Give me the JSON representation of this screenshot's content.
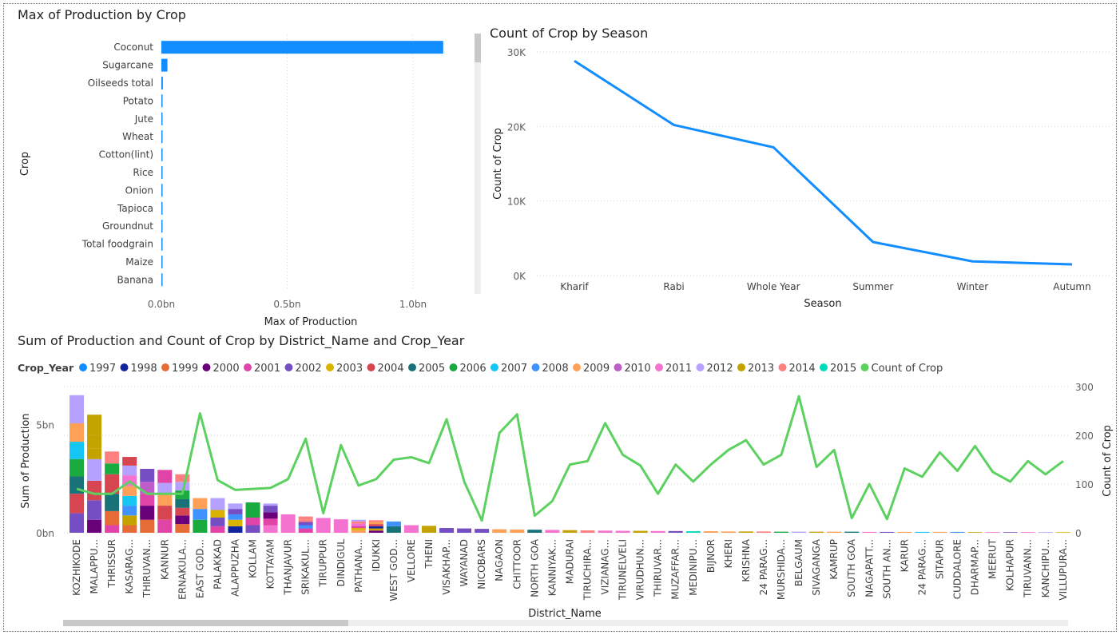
{
  "chart_data": [
    {
      "id": "production_by_crop",
      "type": "bar",
      "orientation": "horizontal",
      "title": "Max of Production by Crop",
      "xlabel": "Max of Production",
      "ylabel": "Crop",
      "categories": [
        "Coconut",
        "Sugarcane",
        "Oilseeds total",
        "Potato",
        "Jute",
        "Wheat",
        "Cotton(lint)",
        "Rice",
        "Onion",
        "Tapioca",
        "Groundnut",
        "Total foodgrain",
        "Maize",
        "Banana"
      ],
      "values": [
        1.12,
        0.024,
        0.006,
        0.003,
        0.003,
        0.003,
        0.003,
        0.003,
        0.002,
        0.002,
        0.002,
        0.002,
        0.002,
        0.002
      ],
      "unit": "bn",
      "xlim": [
        0,
        1.2
      ],
      "xticks": [
        "0.0bn",
        "0.5bn",
        "1.0bn"
      ],
      "xtick_values": [
        0,
        0.5,
        1.0
      ],
      "color": "#118DFF",
      "grid": true
    },
    {
      "id": "crop_count_by_season",
      "type": "line",
      "title": "Count of Crop by Season",
      "xlabel": "Season",
      "ylabel": "Count of Crop",
      "categories": [
        "Kharif",
        "Rabi",
        "Whole Year",
        "Summer",
        "Winter",
        "Autumn"
      ],
      "values": [
        28800,
        20200,
        17200,
        4500,
        1900,
        1500
      ],
      "ylim": [
        0,
        30000
      ],
      "yticks": [
        "0K",
        "10K",
        "20K",
        "30K"
      ],
      "ytick_values": [
        0,
        10000,
        20000,
        30000
      ],
      "color": "#118DFF",
      "grid": true
    },
    {
      "id": "production_count_by_district",
      "type": "bar",
      "stacked": true,
      "title": "Sum of Production and Count of Crop by District_Name and Crop_Year",
      "xlabel": "District_Name",
      "ylabel": "Sum of Production",
      "y2label": "Count of Crop",
      "legend_title": "Crop_Year",
      "legend_position": "top-left",
      "years": [
        "1997",
        "1998",
        "1999",
        "2000",
        "2001",
        "2002",
        "2003",
        "2004",
        "2005",
        "2006",
        "2007",
        "2008",
        "2009",
        "2010",
        "2011",
        "2012",
        "2013",
        "2014",
        "2015"
      ],
      "year_colors": [
        "#118DFF",
        "#12239E",
        "#E66C37",
        "#6B007B",
        "#E044A7",
        "#744EC2",
        "#D9B300",
        "#D64550",
        "#197278",
        "#1AAB40",
        "#15C6F4",
        "#4092FF",
        "#FFA058",
        "#BE5DC9",
        "#F472D0",
        "#B5A1FF",
        "#C4A200",
        "#FF8080",
        "#00DBBC"
      ],
      "line_series_name": "Count of Crop",
      "line_color": "#5CD160",
      "categories": [
        "KOZHIKODE",
        "MALAPPU...",
        "THRISSUR",
        "KASARAG...",
        "THIRUVAN...",
        "KANNUR",
        "ERNAKULA...",
        "EAST GOD...",
        "PALAKKAD",
        "ALAPPUZHA",
        "KOLLAM",
        "KOTTAYAM",
        "THANJAVUR",
        "SRIKAKUL...",
        "TIRUPPUR",
        "DINDIGUL",
        "PATHANA...",
        "IDUKKI",
        "WEST GOD...",
        "VELLORE",
        "THENI",
        "VISAKHAP...",
        "WAYANAD",
        "NICOBARS",
        "NAGAON",
        "CHITTOOR",
        "NORTH GOA",
        "KANNIYAK...",
        "MADURAI",
        "TIRUCHIRA...",
        "VIZIANAG...",
        "TIRUNELVELI",
        "VIRUDHUN...",
        "THIRUVAR...",
        "MUZAFFAR...",
        "MEDINIPU...",
        "BIJNOR",
        "KHERI",
        "KRISHNA",
        "24 PARAG...",
        "MURSHIDA...",
        "BELGAUM",
        "SIVAGANGA",
        "KAMRUP",
        "SOUTH GOA",
        "NAGAPATT...",
        "SOUTH AN...",
        "KARUR",
        "24 PARAG...",
        "SITAPUR",
        "CUDDALORE",
        "DHARMAP...",
        "MEERUT",
        "KOLHAPUR",
        "TIRUVANN...",
        "KANCHIPU...",
        "VILLUPURA..."
      ],
      "stacks": [
        [
          0.9,
          0.9,
          0.8,
          0.8,
          0.8,
          0.85,
          0.7,
          0.6
        ],
        [
          0.6,
          0.9,
          0.9,
          1.0,
          0.5,
          0.6,
          0.95
        ],
        [
          0.35,
          0.65,
          0.8,
          0.9,
          0.5,
          0.55
        ],
        [
          0.35,
          0.45,
          0.45,
          0.45,
          0.45,
          0.5,
          0.45,
          0.4
        ],
        [
          0.6,
          0.65,
          0.55,
          0.55,
          0.6
        ],
        [
          0.6,
          0.65,
          0.55,
          0.5,
          0.6
        ],
        [
          0.4,
          0.4,
          0.35,
          0.4,
          0.4,
          0.4,
          0.35
        ],
        [
          0.6,
          0.5,
          0.5
        ],
        [
          0.3,
          0.4,
          0.35,
          0.35,
          0.2
        ],
        [
          0.3,
          0.3,
          0.25,
          0.25,
          0.25
        ],
        [
          0.35,
          0.35,
          0.35,
          0.35
        ],
        [
          0.35,
          0.3,
          0.3,
          0.3,
          0.1
        ],
        [
          0.85
        ],
        [
          0.2,
          0.15,
          0.15,
          0.1,
          0.15
        ],
        [
          0.68
        ],
        [
          0.62
        ],
        [
          0.12,
          0.1,
          0.1,
          0.1,
          0.1,
          0.08
        ],
        [
          0.1,
          0.1,
          0.1,
          0.1,
          0.1,
          0.08
        ],
        [
          0.3,
          0.22
        ],
        [
          0.35
        ],
        [
          0.32
        ],
        [
          0.22
        ],
        [
          0.2
        ],
        [
          0.18
        ],
        [
          0.16
        ],
        [
          0.15
        ],
        [
          0.14
        ],
        [
          0.13
        ],
        [
          0.12
        ],
        [
          0.11
        ],
        [
          0.1
        ],
        [
          0.09
        ],
        [
          0.09
        ],
        [
          0.08
        ],
        [
          0.08
        ],
        [
          0.07
        ],
        [
          0.07
        ],
        [
          0.06
        ],
        [
          0.06
        ],
        [
          0.06
        ],
        [
          0.05
        ],
        [
          0.05
        ],
        [
          0.05
        ],
        [
          0.05
        ],
        [
          0.05
        ],
        [
          0.04
        ],
        [
          0.04
        ],
        [
          0.04
        ],
        [
          0.04
        ],
        [
          0.04
        ],
        [
          0.04
        ],
        [
          0.03
        ],
        [
          0.03
        ],
        [
          0.03
        ],
        [
          0.03
        ],
        [
          0.03
        ],
        [
          0.03
        ]
      ],
      "stack_colors": [
        [
          "#744EC2",
          "#D64550",
          "#197278",
          "#1AAB40",
          "#15C6F4",
          "#FFA058",
          "#B5A1FF",
          "#B5A1FF"
        ],
        [
          "#6B007B",
          "#744EC2",
          "#D64550",
          "#B5A1FF",
          "#C4A200",
          "#C4A200",
          "#C4A200"
        ],
        [
          "#E044A7",
          "#E66C37",
          "#197278",
          "#D64550",
          "#1AAB40",
          "#FF8080"
        ],
        [
          "#E66C37",
          "#C4A200",
          "#4092FF",
          "#15C6F4",
          "#FFA058",
          "#F472D0",
          "#B5A1FF",
          "#D64550"
        ],
        [
          "#E66C37",
          "#6B007B",
          "#E044A7",
          "#BE5DC9",
          "#744EC2"
        ],
        [
          "#E044A7",
          "#D64550",
          "#FFA058",
          "#B5A1FF",
          "#E044A7"
        ],
        [
          "#E66C37",
          "#6B007B",
          "#D64550",
          "#197278",
          "#1AAB40",
          "#B5A1FF",
          "#FF8080"
        ],
        [
          "#1AAB40",
          "#4092FF",
          "#FFA058"
        ],
        [
          "#E044A7",
          "#744EC2",
          "#D9B300",
          "#B5A1FF",
          "#B5A1FF"
        ],
        [
          "#12239E",
          "#D9B300",
          "#4092FF",
          "#744EC2",
          "#B5A1FF"
        ],
        [
          "#744EC2",
          "#E044A7",
          "#1AAB40",
          "#1AAB40"
        ],
        [
          "#F472D0",
          "#E044A7",
          "#6B007B",
          "#744EC2",
          "#B5A1FF"
        ],
        [
          "#F472D0"
        ],
        [
          "#E044A7",
          "#4092FF",
          "#744EC2",
          "#FF8080",
          "#FF8080"
        ],
        [
          "#F472D0"
        ],
        [
          "#F472D0"
        ],
        [
          "#FFA058",
          "#D9B300",
          "#E044A7",
          "#F472D0",
          "#FF8080",
          "#B5A1FF"
        ],
        [
          "#6B007B",
          "#C4A200",
          "#12239E",
          "#D64550",
          "#FFA058",
          "#FF8080"
        ],
        [
          "#197278",
          "#4092FF"
        ],
        [
          "#F472D0"
        ],
        [
          "#C4A200"
        ],
        [
          "#744EC2"
        ],
        [
          "#744EC2"
        ],
        [
          "#744EC2"
        ],
        [
          "#FFA058"
        ],
        [
          "#FFA058"
        ],
        [
          "#197278"
        ],
        [
          "#F472D0"
        ],
        [
          "#C4A200"
        ],
        [
          "#FF8080"
        ],
        [
          "#F472D0"
        ],
        [
          "#F472D0"
        ],
        [
          "#C4A200"
        ],
        [
          "#F472D0"
        ],
        [
          "#744EC2"
        ],
        [
          "#00DBBC"
        ],
        [
          "#FFA058"
        ],
        [
          "#FFA058"
        ],
        [
          "#C4A200"
        ],
        [
          "#FF8080"
        ],
        [
          "#1AAB40"
        ],
        [
          "#B5A1FF"
        ],
        [
          "#C4A200"
        ],
        [
          "#FFA058"
        ],
        [
          "#197278"
        ],
        [
          "#F472D0"
        ],
        [
          "#744EC2"
        ],
        [
          "#FFA058"
        ],
        [
          "#15C6F4"
        ],
        [
          "#FFA058"
        ],
        [
          "#4092FF"
        ],
        [
          "#C4A200"
        ],
        [
          "#F472D0"
        ],
        [
          "#744EC2"
        ],
        [
          "#F472D0"
        ],
        [
          "#B5A1FF"
        ],
        [
          "#D9B300"
        ]
      ],
      "production_ticks": [
        "0bn",
        "5bn"
      ],
      "production_tick_values": [
        0,
        5
      ],
      "production_ylim": [
        0,
        8
      ],
      "count_values": [
        90,
        80,
        80,
        105,
        80,
        80,
        80,
        245,
        108,
        88,
        90,
        92,
        110,
        193,
        40,
        180,
        97,
        110,
        150,
        155,
        143,
        233,
        105,
        25,
        205,
        243,
        35,
        65,
        140,
        147,
        225,
        160,
        138,
        80,
        140,
        105,
        140,
        170,
        190,
        140,
        160,
        280,
        135,
        170,
        30,
        100,
        28,
        132,
        115,
        165,
        127,
        178,
        125,
        105,
        147,
        120,
        147
      ],
      "count_ylim": [
        0,
        300
      ],
      "count_ticks": [
        "0",
        "100",
        "200",
        "300"
      ],
      "count_tick_values": [
        0,
        100,
        200,
        300
      ]
    }
  ]
}
